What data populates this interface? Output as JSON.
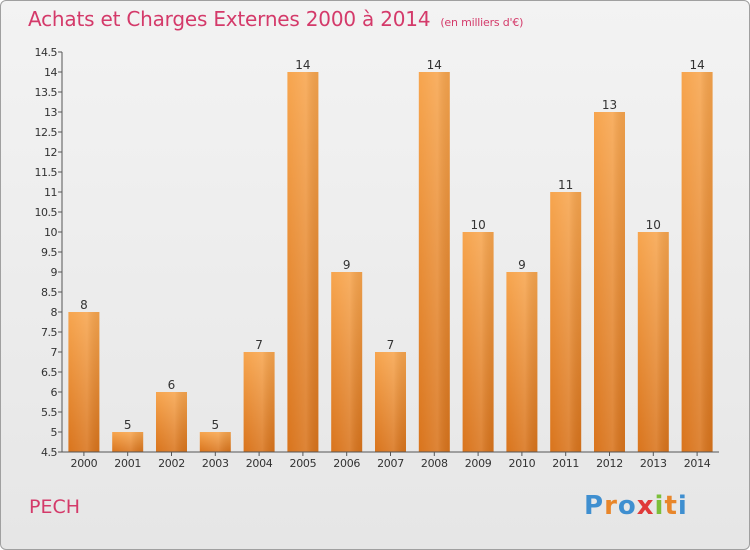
{
  "header": {
    "title": "Achats et Charges Externes 2000 à 2014",
    "unit_note": "(en milliers d'€)"
  },
  "footer": {
    "commune": "PECH",
    "logo_text": "Proxiti"
  },
  "colors": {
    "title": "#d43a6a",
    "bar_light": "#f7a54e",
    "bar_dark": "#d9741c"
  },
  "chart_data": {
    "type": "bar",
    "title": "Achats et Charges Externes 2000 à 2014",
    "subtitle": "(en milliers d'€)",
    "categories": [
      "2000",
      "2001",
      "2002",
      "2003",
      "2004",
      "2005",
      "2006",
      "2007",
      "2008",
      "2009",
      "2010",
      "2011",
      "2012",
      "2013",
      "2014"
    ],
    "values": [
      8,
      5,
      6,
      5,
      7,
      14,
      9,
      7,
      14,
      10,
      9,
      11,
      13,
      10,
      14
    ],
    "ylim": [
      4.5,
      14.5
    ],
    "yticks": [
      "4.5",
      "5",
      "5.5",
      "6",
      "6.5",
      "7",
      "7.5",
      "8",
      "8.5",
      "9",
      "9.5",
      "10",
      "10.5",
      "11",
      "11.5",
      "12",
      "12.5",
      "13",
      "13.5",
      "14",
      "14.5"
    ],
    "grid": false,
    "data_labels": true
  }
}
